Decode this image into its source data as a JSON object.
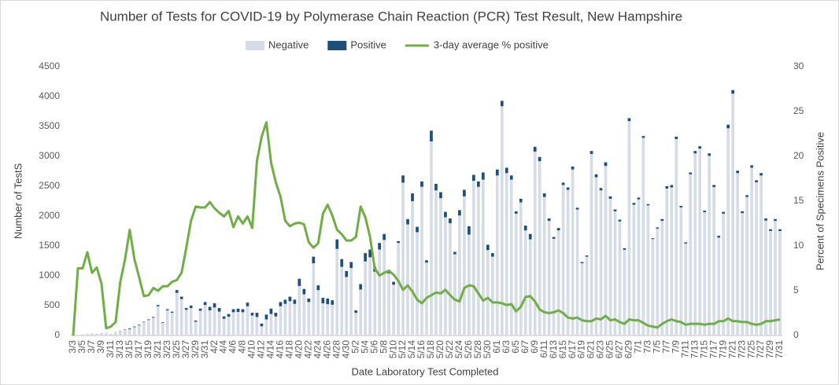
{
  "chart_data": {
    "type": "bar",
    "stacked": true,
    "title": "Number of Tests for COVID-19 by Polymerase Chain Reaction (PCR) Test Result, New Hampshire",
    "x_label": "Date Laboratory Test Completed",
    "y_label": "Number of TestS",
    "y2_label": "Percent of Specimens Positive",
    "ylim": [
      0,
      4500
    ],
    "yticks": [
      0,
      500,
      1000,
      1500,
      2000,
      2500,
      3000,
      3500,
      4000,
      4500
    ],
    "y2lim": [
      0,
      30
    ],
    "y2ticks": [
      0,
      5,
      10,
      15,
      20,
      25,
      30
    ],
    "grid": false,
    "legend": "top",
    "categories": [
      "3/3",
      null,
      "3/5",
      null,
      "3/7",
      null,
      "3/9",
      null,
      "3/11",
      null,
      "3/13",
      null,
      "3/15",
      null,
      "3/17",
      null,
      "3/19",
      null,
      "3/21",
      null,
      "3/23",
      null,
      "3/25",
      null,
      "3/27",
      null,
      "3/29",
      null,
      "3/31",
      null,
      "4/2",
      null,
      "4/4",
      null,
      "4/6",
      null,
      "4/8",
      null,
      "4/10",
      null,
      "4/12",
      null,
      "4/14",
      null,
      "4/16",
      null,
      "4/18",
      null,
      "4/20",
      null,
      "4/22",
      null,
      "4/24",
      null,
      "4/26",
      null,
      "4/28",
      null,
      "4/30",
      null,
      "5/2",
      null,
      "5/4",
      null,
      "5/6",
      null,
      "5/8",
      null,
      "5/10",
      null,
      "5/12",
      null,
      "5/14",
      null,
      "5/16",
      null,
      "5/18",
      null,
      "5/20",
      null,
      "5/22",
      null,
      "5/24",
      null,
      "5/26",
      null,
      "5/28",
      null,
      "5/30",
      null,
      "6/1",
      null,
      "6/3",
      null,
      "6/5",
      null,
      "6/7",
      null,
      "6/9",
      null,
      "6/11",
      null,
      "6/13",
      null,
      "6/15",
      null,
      "6/17",
      null,
      "6/19",
      null,
      "6/21",
      null,
      "6/23",
      null,
      "6/25",
      null,
      "6/27",
      null,
      "6/29",
      null,
      "7/1",
      null,
      "7/3",
      null,
      "7/5",
      null,
      "7/7",
      null,
      "7/9",
      null,
      "7/11",
      null,
      "7/13",
      null,
      "7/15",
      null,
      "7/17",
      null,
      "7/19",
      null,
      "7/21",
      null,
      "7/23",
      null,
      "7/25",
      null,
      "7/27",
      null,
      "7/29",
      null,
      "7/31"
    ],
    "series": [
      {
        "name": "Negative",
        "color": "#d6dce5",
        "values": [
          5,
          10,
          14,
          18,
          28,
          23,
          38,
          44,
          30,
          59,
          77,
          94,
          108,
          140,
          170,
          222,
          260,
          298,
          490,
          210,
          422,
          382,
          715,
          610,
          430,
          460,
          230,
          415,
          510,
          420,
          470,
          400,
          280,
          315,
          390,
          395,
          390,
          490,
          335,
          310,
          155,
          270,
          360,
          320,
          490,
          530,
          575,
          530,
          830,
          690,
          560,
          1210,
          760,
          540,
          525,
          515,
          1450,
          1150,
          980,
          1130,
          380,
          770,
          1240,
          1310,
          1070,
          1440,
          1600,
          1040,
          850,
          1550,
          2560,
          1860,
          2250,
          1730,
          2490,
          1220,
          3250,
          2430,
          2300,
          1980,
          1880,
          1360,
          2010,
          2330,
          1690,
          2590,
          2490,
          2610,
          1430,
          1320,
          2680,
          3840,
          2720,
          2610,
          2040,
          2230,
          1760,
          1610,
          3080,
          2920,
          2320,
          1920,
          1620,
          1760,
          2520,
          2440,
          2780,
          2110,
          1210,
          1320,
          3040,
          2650,
          2430,
          2840,
          2290,
          2080,
          1910,
          1435,
          3590,
          2190,
          2280,
          3310,
          2180,
          1615,
          1790,
          1920,
          2460,
          2480,
          3290,
          2145,
          1540,
          2700,
          3050,
          3130,
          2065,
          3010,
          2485,
          1640,
          2040,
          3470,
          4050,
          2720,
          2050,
          2320,
          2810,
          2565,
          2680,
          1925,
          1750,
          1920,
          1750
        ]
      },
      {
        "name": "Positive",
        "color": "#1f4e79",
        "values": [
          0,
          0,
          1,
          2,
          2,
          2,
          2,
          1,
          0,
          1,
          3,
          6,
          12,
          10,
          10,
          8,
          10,
          12,
          20,
          10,
          18,
          18,
          45,
          40,
          30,
          40,
          20,
          35,
          50,
          60,
          70,
          60,
          40,
          45,
          50,
          55,
          50,
          60,
          45,
          70,
          45,
          80,
          90,
          60,
          70,
          70,
          75,
          70,
          120,
          90,
          60,
          110,
          80,
          90,
          95,
          75,
          160,
          130,
          100,
          100,
          40,
          90,
          140,
          130,
          80,
          110,
          100,
          60,
          50,
          30,
          120,
          90,
          130,
          90,
          90,
          40,
          180,
          110,
          100,
          90,
          80,
          40,
          90,
          110,
          140,
          100,
          90,
          120,
          90,
          60,
          100,
          90,
          90,
          70,
          40,
          60,
          80,
          90,
          80,
          70,
          60,
          40,
          30,
          40,
          40,
          40,
          50,
          30,
          20,
          20,
          50,
          50,
          40,
          60,
          40,
          30,
          30,
          25,
          50,
          30,
          30,
          30,
          20,
          15,
          20,
          30,
          40,
          40,
          40,
          25,
          20,
          30,
          40,
          40,
          25,
          40,
          35,
          30,
          30,
          60,
          60,
          40,
          30,
          30,
          40,
          35,
          40,
          35,
          30,
          30,
          30
        ]
      },
      {
        "name": "3-day average % positive",
        "color": "#70ad47",
        "type": "line",
        "axis": "y2",
        "values": [
          0,
          7.5,
          7.5,
          9.3,
          7,
          7.6,
          5.8,
          0.8,
          1,
          1.5,
          6,
          8.5,
          11.8,
          8.5,
          6.5,
          4.4,
          4.5,
          5.3,
          5,
          5.5,
          5.5,
          6,
          6.2,
          7,
          9.8,
          12.8,
          14.4,
          14.3,
          14.3,
          14.9,
          14.2,
          13.7,
          13.3,
          13.9,
          12.1,
          13.3,
          12.5,
          13.3,
          12,
          19.5,
          22.2,
          23.8,
          19.3,
          17.1,
          15.5,
          12.8,
          12.2,
          12.5,
          12.6,
          12.4,
          10.4,
          9.8,
          10.3,
          13.6,
          14.6,
          13.4,
          11.8,
          11.3,
          10.6,
          10.6,
          11,
          14.4,
          13.2,
          11,
          7.5,
          6.7,
          7,
          7.2,
          6.8,
          6.1,
          5.1,
          5.6,
          4.9,
          4,
          3.6,
          4.2,
          4.5,
          4.8,
          4.7,
          5.1,
          4.5,
          4,
          3.8,
          5.3,
          5.6,
          5.5,
          4.7,
          3.9,
          4.2,
          3.7,
          3.7,
          3.6,
          3.4,
          3.5,
          2.7,
          3.2,
          4.3,
          4.4,
          3.8,
          2.9,
          2.6,
          2.5,
          2.6,
          2.8,
          2.5,
          2,
          1.9,
          2,
          1.7,
          1.6,
          1.6,
          1.9,
          1.8,
          2.2,
          1.7,
          1.8,
          1.5,
          1.3,
          1.8,
          1.7,
          1.7,
          1.4,
          1.1,
          1,
          0.9,
          1.3,
          1.6,
          1.8,
          1.6,
          1.5,
          1.2,
          1.3,
          1.3,
          1.3,
          1.2,
          1.3,
          1.3,
          1.6,
          1.6,
          1.9,
          1.6,
          1.6,
          1.5,
          1.5,
          1.3,
          1.2,
          1.3,
          1.6,
          1.6,
          1.7,
          1.8
        ]
      }
    ]
  }
}
